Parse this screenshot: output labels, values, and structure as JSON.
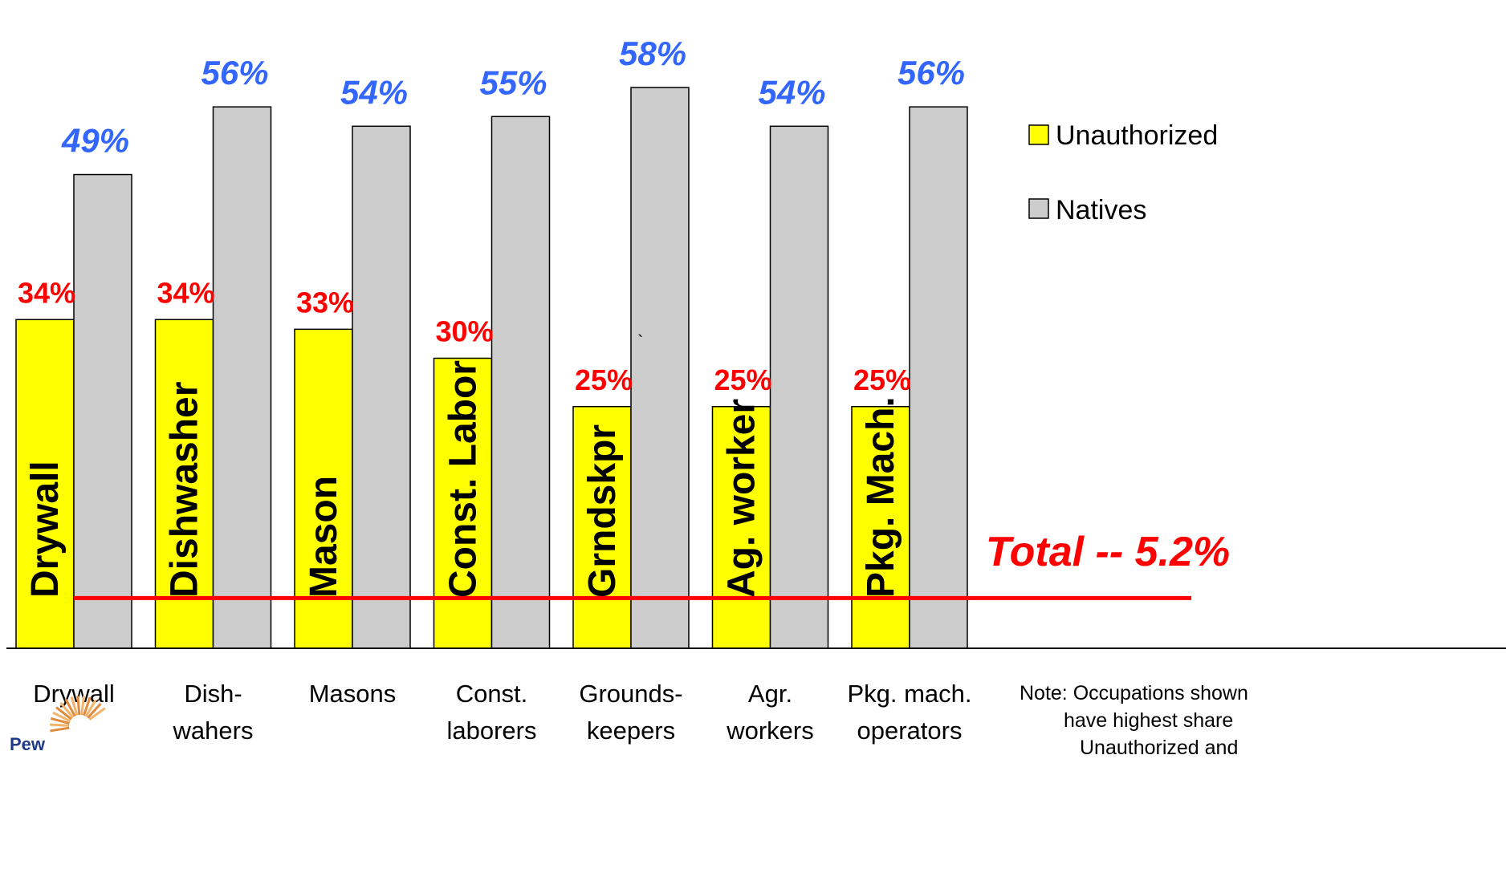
{
  "chart_data": {
    "type": "bar",
    "categories": [
      [
        "Drywall"
      ],
      [
        "Dish-",
        "wahers"
      ],
      [
        "Masons"
      ],
      [
        "Const.",
        "laborers"
      ],
      [
        "Grounds-",
        "keepers"
      ],
      [
        "Agr.",
        "workers"
      ],
      [
        "Pkg. mach.",
        "operators"
      ]
    ],
    "bar_inner_labels": [
      "Drywall",
      "Dishwasher",
      "Mason",
      "Const. Labor",
      "Grndskpr",
      "Ag. worker",
      "Pkg. Mach."
    ],
    "series": [
      {
        "name": "Unauthorized",
        "values": [
          34,
          34,
          33,
          30,
          25,
          25,
          25
        ],
        "labels": [
          "34%",
          "34%",
          "33%",
          "30%",
          "25%",
          "25%",
          "25%"
        ],
        "color": "#ffff00",
        "label_color": "#ff0000"
      },
      {
        "name": "Natives",
        "values": [
          49,
          56,
          54,
          55,
          58,
          54,
          56
        ],
        "labels": [
          "49%",
          "56%",
          "54%",
          "55%",
          "58%",
          "54%",
          "56%"
        ],
        "color": "#cccccc",
        "label_color": "#3366ff"
      }
    ],
    "reference_line": {
      "value": 5.2,
      "label": "Total -- 5.2%",
      "color": "#ff0000"
    },
    "stray_mark": "`",
    "note": [
      "Note: Occupations shown",
      "have highest share",
      "Unauthorized and"
    ],
    "logo_text": "Pew",
    "legend_position": "right",
    "ylim": [
      0,
      63
    ],
    "grid": false,
    "title": "",
    "xlabel": "",
    "ylabel": ""
  }
}
